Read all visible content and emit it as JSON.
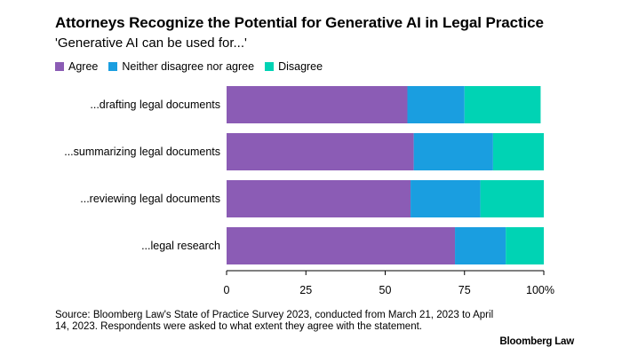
{
  "chart_data": {
    "type": "bar",
    "orientation": "horizontal",
    "stacked": true,
    "title": "Attorneys Recognize the Potential for Generative AI in Legal Practice",
    "subtitle": "'Generative AI can be used for...'",
    "categories": [
      "...drafting legal documents",
      "...summarizing legal documents",
      "...reviewing legal documents",
      "...legal research"
    ],
    "series": [
      {
        "name": "Agree",
        "color": "#8b5cb5",
        "values": [
          57,
          59,
          58,
          72
        ]
      },
      {
        "name": "Neither disagree nor agree",
        "color": "#1a9ee0",
        "values": [
          18,
          25,
          22,
          16
        ]
      },
      {
        "name": "Disagree",
        "color": "#00d3b4",
        "values": [
          24,
          16,
          20,
          12
        ]
      }
    ],
    "xlim": [
      0,
      100
    ],
    "x_ticks": [
      "0",
      "25",
      "50",
      "75",
      "100%"
    ],
    "xlabel": "",
    "ylabel": "",
    "legend_position": "top-left",
    "grid": false
  },
  "footer": {
    "source": "Source: Bloomberg Law's State of Practice Survey 2023, conducted from March 21, 2023 to April 14, 2023. Respondents were asked to what extent they agree with the statement.",
    "brand": "Bloomberg Law"
  }
}
